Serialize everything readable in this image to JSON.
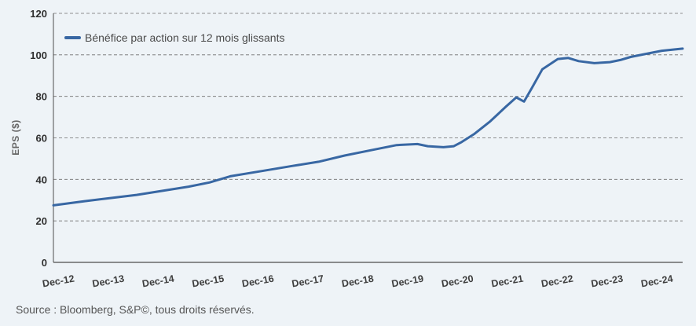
{
  "chart_data": {
    "type": "line",
    "ylabel": "EPS ($)",
    "ylim": [
      0,
      120
    ],
    "yticks": [
      0,
      20,
      40,
      60,
      80,
      100,
      120
    ],
    "grid": true,
    "legend_position": "top-left",
    "categories": [
      "Dec-12",
      "Dec-13",
      "Dec-14",
      "Dec-15",
      "Dec-16",
      "Dec-17",
      "Dec-18",
      "Dec-19",
      "Dec-20",
      "Dec-21",
      "Dec-22",
      "Dec-23",
      "Dec-24"
    ],
    "xlim": [
      2012.9,
      2025.0
    ],
    "series": [
      {
        "name": "Bénéfice par action sur 12 mois glissants",
        "color": "#3867a3",
        "x": [
          2012.9,
          2013.5,
          2014.5,
          2015.5,
          2015.9,
          2016.3,
          2016.9,
          2017.5,
          2018.0,
          2018.5,
          2019.0,
          2019.5,
          2019.9,
          2020.1,
          2020.4,
          2020.6,
          2020.75,
          2021.0,
          2021.3,
          2021.6,
          2021.8,
          2021.95,
          2022.1,
          2022.3,
          2022.6,
          2022.8,
          2023.0,
          2023.3,
          2023.6,
          2023.8,
          2024.0,
          2024.3,
          2024.6,
          2025.0
        ],
        "y": [
          27.5,
          29.5,
          32.5,
          36.5,
          38.5,
          41.5,
          44,
          46.5,
          48.5,
          51.5,
          54,
          56.5,
          57,
          56,
          55.5,
          56,
          58,
          62,
          68,
          75,
          79.5,
          77.5,
          84,
          93,
          98,
          98.5,
          97,
          96,
          96.5,
          97.5,
          99,
          100.5,
          102,
          103
        ]
      }
    ]
  },
  "source_text": "Source : Bloomberg, S&P©, tous droits réservés."
}
